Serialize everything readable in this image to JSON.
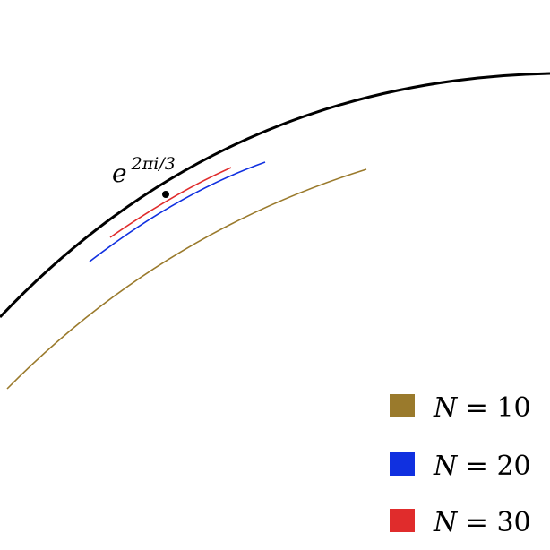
{
  "figure": {
    "unit_circle_color": "#000000",
    "point_label": {
      "base": "e",
      "exponent": "2πi/3"
    },
    "curves": [
      {
        "name": "N = 10",
        "color": "#9a7a2c"
      },
      {
        "name": "N = 20",
        "color": "#1030e0"
      },
      {
        "name": "N = 30",
        "color": "#e02c2c"
      }
    ]
  },
  "legend": {
    "items": [
      {
        "var": "N",
        "op": " = ",
        "value": "10",
        "color": "#9a7a2c"
      },
      {
        "var": "N",
        "op": " = ",
        "value": "20",
        "color": "#1030e0"
      },
      {
        "var": "N",
        "op": " = ",
        "value": "30",
        "color": "#e02c2c"
      }
    ]
  }
}
